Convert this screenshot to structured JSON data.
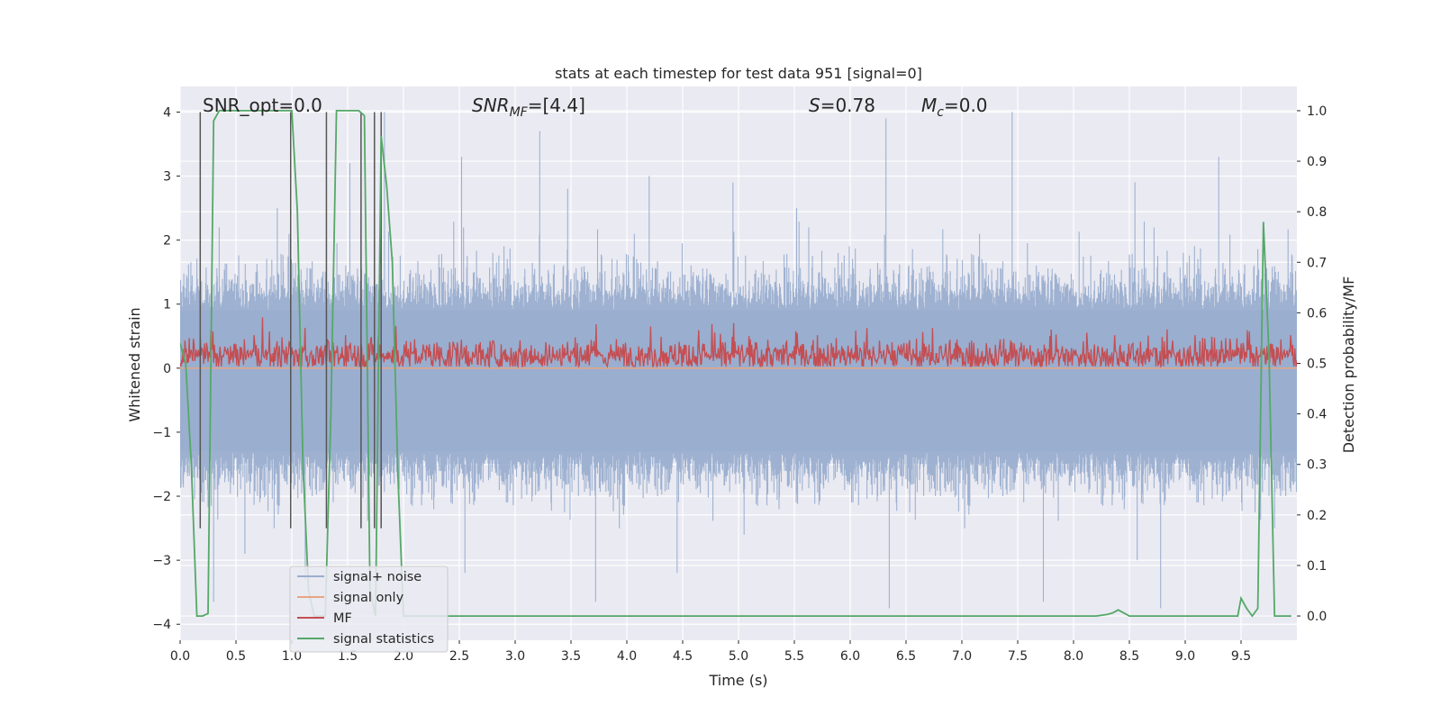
{
  "chart_data": {
    "type": "line",
    "title": "stats at each timestep for test data 951 [signal=0]",
    "xlabel": "Time (s)",
    "ylabel_left": "Whitened strain",
    "ylabel_right": "Detection probability/MF",
    "xlim": [
      0.0,
      10.0
    ],
    "ylim_left": [
      -4.25,
      4.4
    ],
    "ylim_right": [
      -0.048,
      1.048
    ],
    "x_ticks": [
      0.0,
      0.5,
      1.0,
      1.5,
      2.0,
      2.5,
      3.0,
      3.5,
      4.0,
      4.5,
      5.0,
      5.5,
      6.0,
      6.5,
      7.0,
      7.5,
      8.0,
      8.5,
      9.0,
      9.5
    ],
    "x_tick_labels": [
      "0.0",
      "0.5",
      "1.0",
      "1.5",
      "2.0",
      "2.5",
      "3.0",
      "3.5",
      "4.0",
      "4.5",
      "5.0",
      "5.5",
      "6.0",
      "6.5",
      "7.0",
      "7.5",
      "8.0",
      "8.5",
      "9.0",
      "9.5"
    ],
    "y_ticks_left": [
      4,
      3,
      2,
      1,
      0,
      -1,
      -2,
      -3,
      -4
    ],
    "y_tick_labels_left": [
      "4",
      "3",
      "2",
      "1",
      "0",
      "−1",
      "−2",
      "−3",
      "−4"
    ],
    "y_ticks_right": [
      1.0,
      0.9,
      0.8,
      0.7,
      0.6,
      0.5,
      0.4,
      0.3,
      0.2,
      0.1,
      0.0
    ],
    "y_tick_labels_right": [
      "1.0",
      "0.9",
      "0.8",
      "0.7",
      "0.6",
      "0.5",
      "0.4",
      "0.3",
      "0.2",
      "0.1",
      "0.0"
    ],
    "grid": true,
    "legend_placement": "lower-left",
    "series": [
      {
        "name": "signal+ noise",
        "axis": "left",
        "color": "#9aaecf",
        "summary": "dense noise band, mostly within -2.3 to 1.8 with spikes to ~4 and ~-3.75",
        "peaks": [
          [
            0.35,
            2.2
          ],
          [
            0.87,
            2.5
          ],
          [
            1.52,
            3.2
          ],
          [
            1.83,
            4.0
          ],
          [
            2.52,
            3.3
          ],
          [
            3.22,
            3.7
          ],
          [
            3.47,
            2.8
          ],
          [
            4.2,
            3.0
          ],
          [
            4.95,
            2.9
          ],
          [
            5.52,
            2.5
          ],
          [
            6.32,
            3.9
          ],
          [
            7.45,
            4.0
          ],
          [
            8.55,
            2.9
          ],
          [
            9.3,
            3.3
          ]
        ],
        "troughs": [
          [
            0.3,
            -3.65
          ],
          [
            0.58,
            -2.9
          ],
          [
            1.12,
            -3.3
          ],
          [
            2.55,
            -3.2
          ],
          [
            3.72,
            -3.65
          ],
          [
            4.45,
            -3.2
          ],
          [
            5.05,
            -2.6
          ],
          [
            6.35,
            -3.75
          ],
          [
            7.73,
            -3.65
          ],
          [
            8.57,
            -3.0
          ],
          [
            8.78,
            -3.75
          ],
          [
            9.8,
            -2.5
          ]
        ]
      },
      {
        "name": "signal only",
        "axis": "left",
        "color": "#e8a583",
        "values_summary": "flat at 0.0 across the whole time range"
      },
      {
        "name": "MF",
        "axis": "right",
        "color": "#c44e52",
        "summary": "noisy band between ~0.49 and ~0.6, occasional peaks to ~0.62"
      },
      {
        "name": "signal statistics",
        "axis": "right",
        "color": "#55a868",
        "x": [
          0.0,
          0.05,
          0.1,
          0.15,
          0.2,
          0.25,
          0.3,
          0.35,
          0.4,
          0.5,
          0.6,
          0.7,
          0.8,
          0.9,
          1.0,
          1.05,
          1.1,
          1.15,
          1.2,
          1.25,
          1.3,
          1.35,
          1.4,
          1.45,
          1.5,
          1.55,
          1.6,
          1.65,
          1.7,
          1.75,
          1.8,
          1.85,
          1.9,
          1.95,
          2.0,
          2.5,
          3.0,
          3.5,
          4.0,
          4.5,
          5.0,
          5.5,
          6.0,
          6.5,
          7.0,
          7.5,
          8.0,
          8.2,
          8.3,
          8.35,
          8.4,
          8.45,
          8.5,
          8.55,
          8.6,
          9.0,
          9.4,
          9.47,
          9.5,
          9.55,
          9.6,
          9.65,
          9.7,
          9.75,
          9.8,
          9.85,
          9.9,
          9.95
        ],
        "y": [
          0.54,
          0.5,
          0.3,
          0.0,
          0.0,
          0.005,
          0.98,
          1.0,
          1.0,
          1.0,
          1.0,
          1.0,
          1.0,
          1.0,
          1.0,
          0.8,
          0.3,
          0.05,
          0.0,
          0.0,
          0.0,
          0.4,
          1.0,
          1.0,
          1.0,
          1.0,
          1.0,
          0.99,
          0.05,
          0.0,
          0.95,
          0.85,
          0.7,
          0.28,
          0.0,
          0.0,
          0.0,
          0.0,
          0.0,
          0.0,
          0.0,
          0.0,
          0.0,
          0.0,
          0.0,
          0.0,
          0.0,
          0.0,
          0.003,
          0.006,
          0.012,
          0.006,
          0.0,
          0.0,
          0.0,
          0.0,
          0.0,
          0.0,
          0.035,
          0.015,
          0.0,
          0.015,
          0.78,
          0.52,
          0.0,
          0.0,
          0.0,
          0.0
        ]
      }
    ],
    "vertical_markers": {
      "color": "#555555",
      "x": [
        0.18,
        0.99,
        1.31,
        1.62,
        1.74,
        1.8
      ]
    },
    "annotations": [
      {
        "text": "SNR_opt=0.0"
      },
      {
        "text": "SNR_MF=[4.4]",
        "rendered_as": "SNR",
        "sub": "MF",
        "suffix": "=[4.4]"
      },
      {
        "text": "S=0.78",
        "rendered_as": "S",
        "suffix": "=0.78"
      },
      {
        "text": "M_c=0.0",
        "rendered_as": "M",
        "sub": "c",
        "suffix": "=0.0"
      }
    ]
  },
  "colors": {
    "plot_background": "#eaeaf2",
    "grid": "#ffffff",
    "legend_background": "#eaeaf2",
    "legend_border": "#cccccc"
  }
}
